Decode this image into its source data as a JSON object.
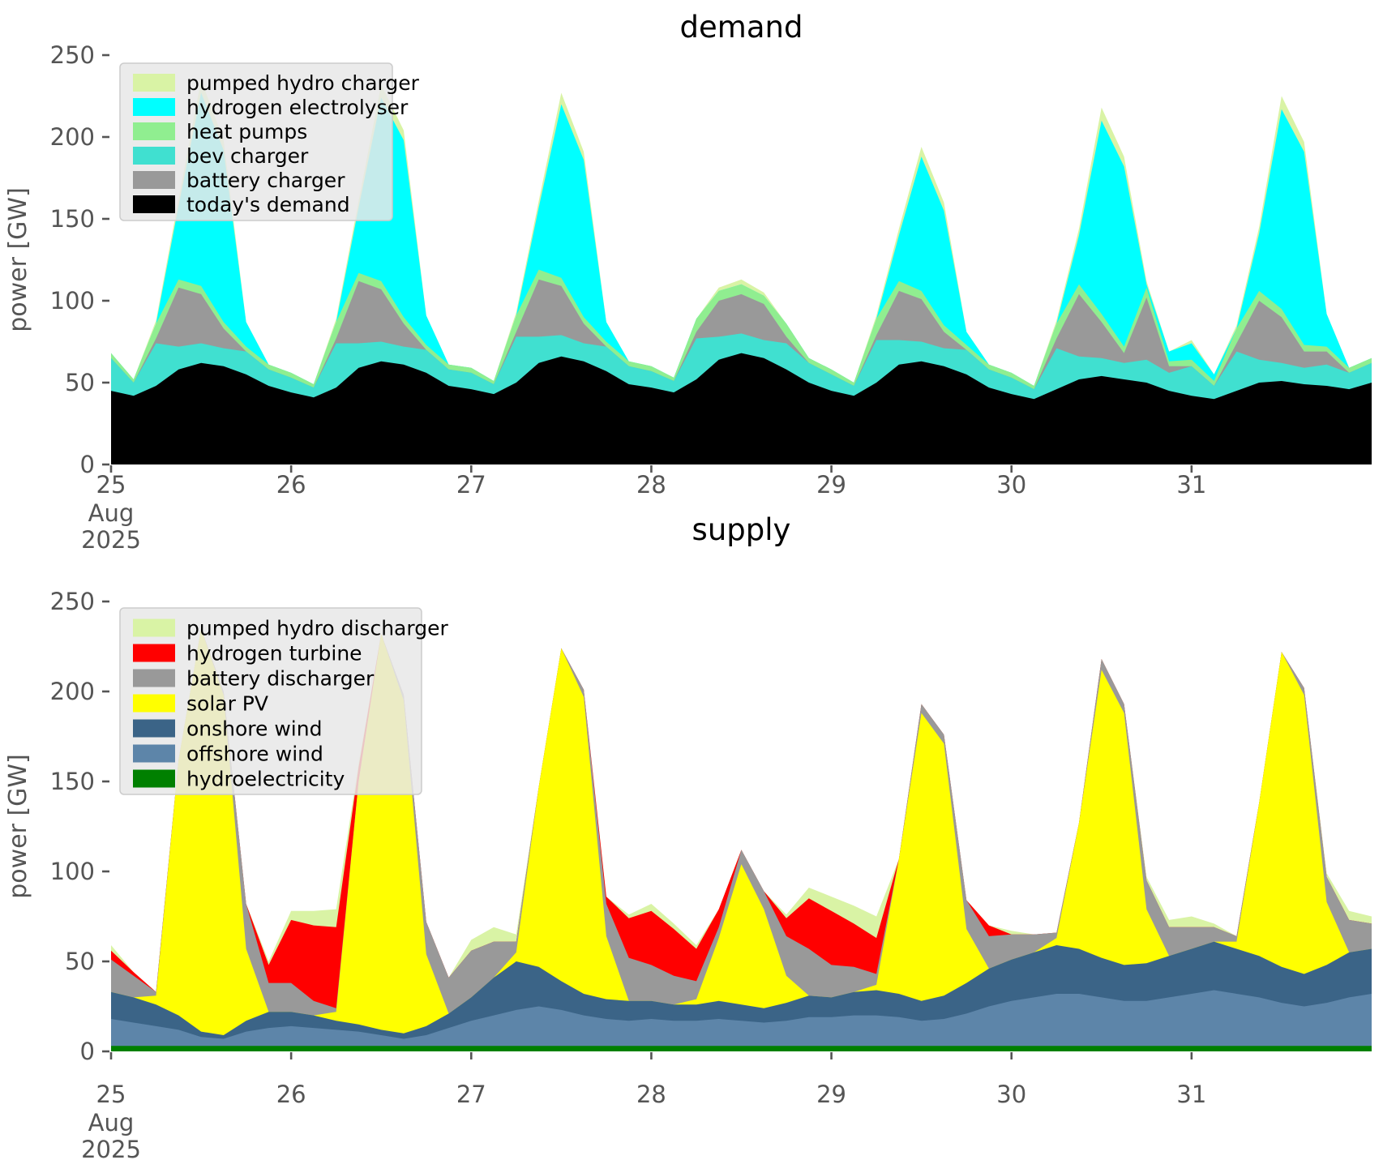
{
  "figure": {
    "background": "#ffffff",
    "tick_color": "#555555",
    "title_color": "#000000"
  },
  "axis": {
    "ylabel": "power [GW]",
    "yticks": [
      0,
      50,
      100,
      150,
      200,
      250
    ],
    "ylim": [
      0,
      250
    ],
    "xtick_labels": [
      "25",
      "26",
      "27",
      "28",
      "29",
      "30",
      "31"
    ],
    "x_month_label": "Aug",
    "x_year_label": "2025"
  },
  "chart_data": [
    {
      "id": "demand",
      "type": "area",
      "stacked": true,
      "title": "demand",
      "x_step_hours": 3,
      "x_days": [
        "Aug 25 2025",
        "Aug 31 2025"
      ],
      "ylim": [
        0,
        250
      ],
      "legend_order_top_to_bottom": [
        "pumped hydro charger",
        "hydrogen electrolyser",
        "heat pumps",
        "bev charger",
        "battery charger",
        "today's demand"
      ],
      "series": [
        {
          "name": "today's demand",
          "color": "#000000",
          "values": [
            45,
            42,
            48,
            58,
            62,
            60,
            55,
            48,
            44,
            41,
            47,
            59,
            63,
            61,
            56,
            48,
            46,
            43,
            50,
            62,
            66,
            63,
            57,
            49,
            47,
            44,
            52,
            64,
            68,
            65,
            58,
            50,
            45,
            42,
            50,
            61,
            63,
            60,
            55,
            47,
            43,
            40,
            46,
            52,
            54,
            52,
            50,
            45,
            42,
            40,
            45,
            50,
            51,
            49,
            48,
            46,
            50
          ]
        },
        {
          "name": "bev charger",
          "color": "#40e0d0",
          "values": [
            20,
            8,
            26,
            14,
            12,
            11,
            14,
            10,
            9,
            6,
            27,
            15,
            12,
            11,
            14,
            10,
            10,
            6,
            28,
            16,
            13,
            11,
            15,
            11,
            10,
            7,
            25,
            14,
            12,
            11,
            16,
            12,
            10,
            6,
            26,
            15,
            12,
            11,
            15,
            11,
            10,
            6,
            25,
            14,
            11,
            10,
            14,
            11,
            18,
            8,
            24,
            14,
            11,
            10,
            13,
            10,
            12
          ]
        },
        {
          "name": "battery charger",
          "color": "#999999",
          "values": [
            0,
            0,
            3,
            36,
            30,
            12,
            0,
            0,
            0,
            0,
            3,
            38,
            32,
            14,
            0,
            0,
            0,
            0,
            3,
            35,
            30,
            12,
            0,
            0,
            0,
            0,
            4,
            22,
            24,
            22,
            4,
            0,
            0,
            0,
            3,
            30,
            26,
            10,
            0,
            0,
            0,
            0,
            6,
            38,
            22,
            6,
            38,
            4,
            0,
            0,
            5,
            36,
            28,
            10,
            8,
            0,
            0
          ]
        },
        {
          "name": "heat pumps",
          "color": "#90ee90",
          "values": [
            3,
            2,
            9,
            5,
            5,
            4,
            3,
            3,
            3,
            2,
            10,
            5,
            5,
            4,
            3,
            3,
            3,
            2,
            10,
            6,
            5,
            4,
            3,
            3,
            3,
            2,
            8,
            6,
            6,
            5,
            8,
            3,
            3,
            2,
            10,
            6,
            5,
            4,
            3,
            3,
            3,
            2,
            9,
            6,
            5,
            4,
            6,
            3,
            4,
            3,
            9,
            6,
            5,
            4,
            3,
            3,
            3
          ]
        },
        {
          "name": "hydrogen electrolyser",
          "color": "#00ffff",
          "values": [
            0,
            0,
            0,
            45,
            118,
            105,
            15,
            0,
            0,
            0,
            0,
            40,
            112,
            108,
            18,
            0,
            0,
            0,
            0,
            38,
            106,
            96,
            12,
            0,
            0,
            0,
            0,
            0,
            0,
            0,
            0,
            0,
            0,
            0,
            0,
            28,
            82,
            70,
            8,
            0,
            0,
            0,
            0,
            30,
            118,
            110,
            2,
            6,
            10,
            4,
            0,
            35,
            122,
            118,
            20,
            0,
            0
          ]
        },
        {
          "name": "pumped hydro charger",
          "color": "#d9f3a5",
          "values": [
            0,
            0,
            2,
            4,
            8,
            6,
            0,
            0,
            0,
            0,
            2,
            4,
            8,
            6,
            0,
            0,
            0,
            0,
            2,
            4,
            7,
            5,
            0,
            0,
            0,
            0,
            0,
            2,
            3,
            2,
            0,
            0,
            0,
            0,
            2,
            4,
            6,
            5,
            0,
            0,
            0,
            0,
            2,
            4,
            8,
            6,
            2,
            0,
            2,
            0,
            2,
            4,
            8,
            6,
            0,
            0,
            0
          ]
        }
      ]
    },
    {
      "id": "supply",
      "type": "area",
      "stacked": true,
      "title": "supply",
      "x_step_hours": 3,
      "x_days": [
        "Aug 25 2025",
        "Aug 31 2025"
      ],
      "ylim": [
        0,
        250
      ],
      "legend_order_top_to_bottom": [
        "pumped hydro discharger",
        "hydrogen turbine",
        "battery discharger",
        "solar PV",
        "onshore wind",
        "offshore wind",
        "hydroelectricity"
      ],
      "series": [
        {
          "name": "hydroelectricity",
          "color": "#008000",
          "values": [
            3,
            3,
            3,
            3,
            3,
            3,
            3,
            3,
            3,
            3,
            3,
            3,
            3,
            3,
            3,
            3,
            3,
            3,
            3,
            3,
            3,
            3,
            3,
            3,
            3,
            3,
            3,
            3,
            3,
            3,
            3,
            3,
            3,
            3,
            3,
            3,
            3,
            3,
            3,
            3,
            3,
            3,
            3,
            3,
            3,
            3,
            3,
            3,
            3,
            3,
            3,
            3,
            3,
            3,
            3,
            3,
            3
          ]
        },
        {
          "name": "offshore wind",
          "color": "#5d85a9",
          "values": [
            15,
            13,
            11,
            9,
            5,
            4,
            8,
            10,
            11,
            10,
            9,
            8,
            6,
            4,
            6,
            10,
            14,
            17,
            20,
            22,
            20,
            17,
            15,
            14,
            15,
            14,
            14,
            15,
            14,
            13,
            14,
            16,
            16,
            17,
            17,
            16,
            14,
            15,
            18,
            22,
            25,
            27,
            29,
            29,
            27,
            25,
            25,
            27,
            29,
            31,
            29,
            27,
            24,
            22,
            24,
            27,
            29
          ]
        },
        {
          "name": "onshore wind",
          "color": "#3b6487",
          "values": [
            15,
            14,
            12,
            8,
            3,
            2,
            6,
            9,
            8,
            7,
            5,
            4,
            3,
            3,
            5,
            8,
            13,
            21,
            27,
            22,
            16,
            12,
            11,
            11,
            10,
            9,
            9,
            10,
            9,
            8,
            10,
            12,
            11,
            13,
            14,
            13,
            11,
            13,
            17,
            21,
            23,
            25,
            27,
            25,
            22,
            20,
            21,
            23,
            25,
            27,
            25,
            23,
            20,
            18,
            21,
            25,
            25
          ]
        },
        {
          "name": "solar PV",
          "color": "#ffff00",
          "values": [
            0,
            0,
            5,
            142,
            224,
            189,
            40,
            0,
            0,
            0,
            5,
            135,
            220,
            185,
            40,
            0,
            0,
            0,
            5,
            100,
            185,
            165,
            35,
            0,
            0,
            0,
            3,
            35,
            78,
            55,
            15,
            0,
            0,
            0,
            3,
            75,
            160,
            140,
            30,
            0,
            0,
            0,
            4,
            70,
            160,
            140,
            30,
            0,
            0,
            0,
            4,
            85,
            175,
            155,
            35,
            0,
            0
          ]
        },
        {
          "name": "battery discharger",
          "color": "#999999",
          "values": [
            18,
            12,
            2,
            0,
            0,
            2,
            25,
            16,
            16,
            8,
            2,
            0,
            0,
            3,
            18,
            20,
            26,
            20,
            6,
            0,
            0,
            4,
            18,
            24,
            20,
            16,
            10,
            6,
            8,
            10,
            22,
            26,
            18,
            14,
            6,
            0,
            5,
            5,
            16,
            18,
            14,
            10,
            3,
            0,
            6,
            5,
            16,
            16,
            12,
            8,
            3,
            0,
            0,
            4,
            14,
            18,
            14
          ]
        },
        {
          "name": "hydrogen turbine",
          "color": "#ff0000",
          "values": [
            5,
            2,
            0,
            0,
            0,
            0,
            0,
            10,
            35,
            42,
            45,
            8,
            0,
            0,
            0,
            0,
            0,
            0,
            0,
            0,
            0,
            0,
            4,
            22,
            30,
            26,
            18,
            10,
            0,
            0,
            10,
            28,
            30,
            24,
            20,
            0,
            0,
            0,
            0,
            6,
            0,
            0,
            0,
            0,
            0,
            0,
            0,
            0,
            0,
            0,
            0,
            0,
            0,
            0,
            0,
            0,
            0
          ]
        },
        {
          "name": "pumped hydro discharger",
          "color": "#d9f3a5",
          "values": [
            3,
            0,
            0,
            0,
            0,
            0,
            0,
            2,
            5,
            8,
            10,
            2,
            0,
            0,
            0,
            0,
            6,
            8,
            4,
            0,
            0,
            0,
            0,
            2,
            4,
            3,
            2,
            0,
            0,
            0,
            2,
            6,
            8,
            10,
            12,
            0,
            0,
            0,
            0,
            0,
            2,
            0,
            0,
            0,
            0,
            0,
            2,
            4,
            6,
            2,
            0,
            0,
            0,
            0,
            2,
            5,
            4
          ]
        }
      ]
    }
  ]
}
